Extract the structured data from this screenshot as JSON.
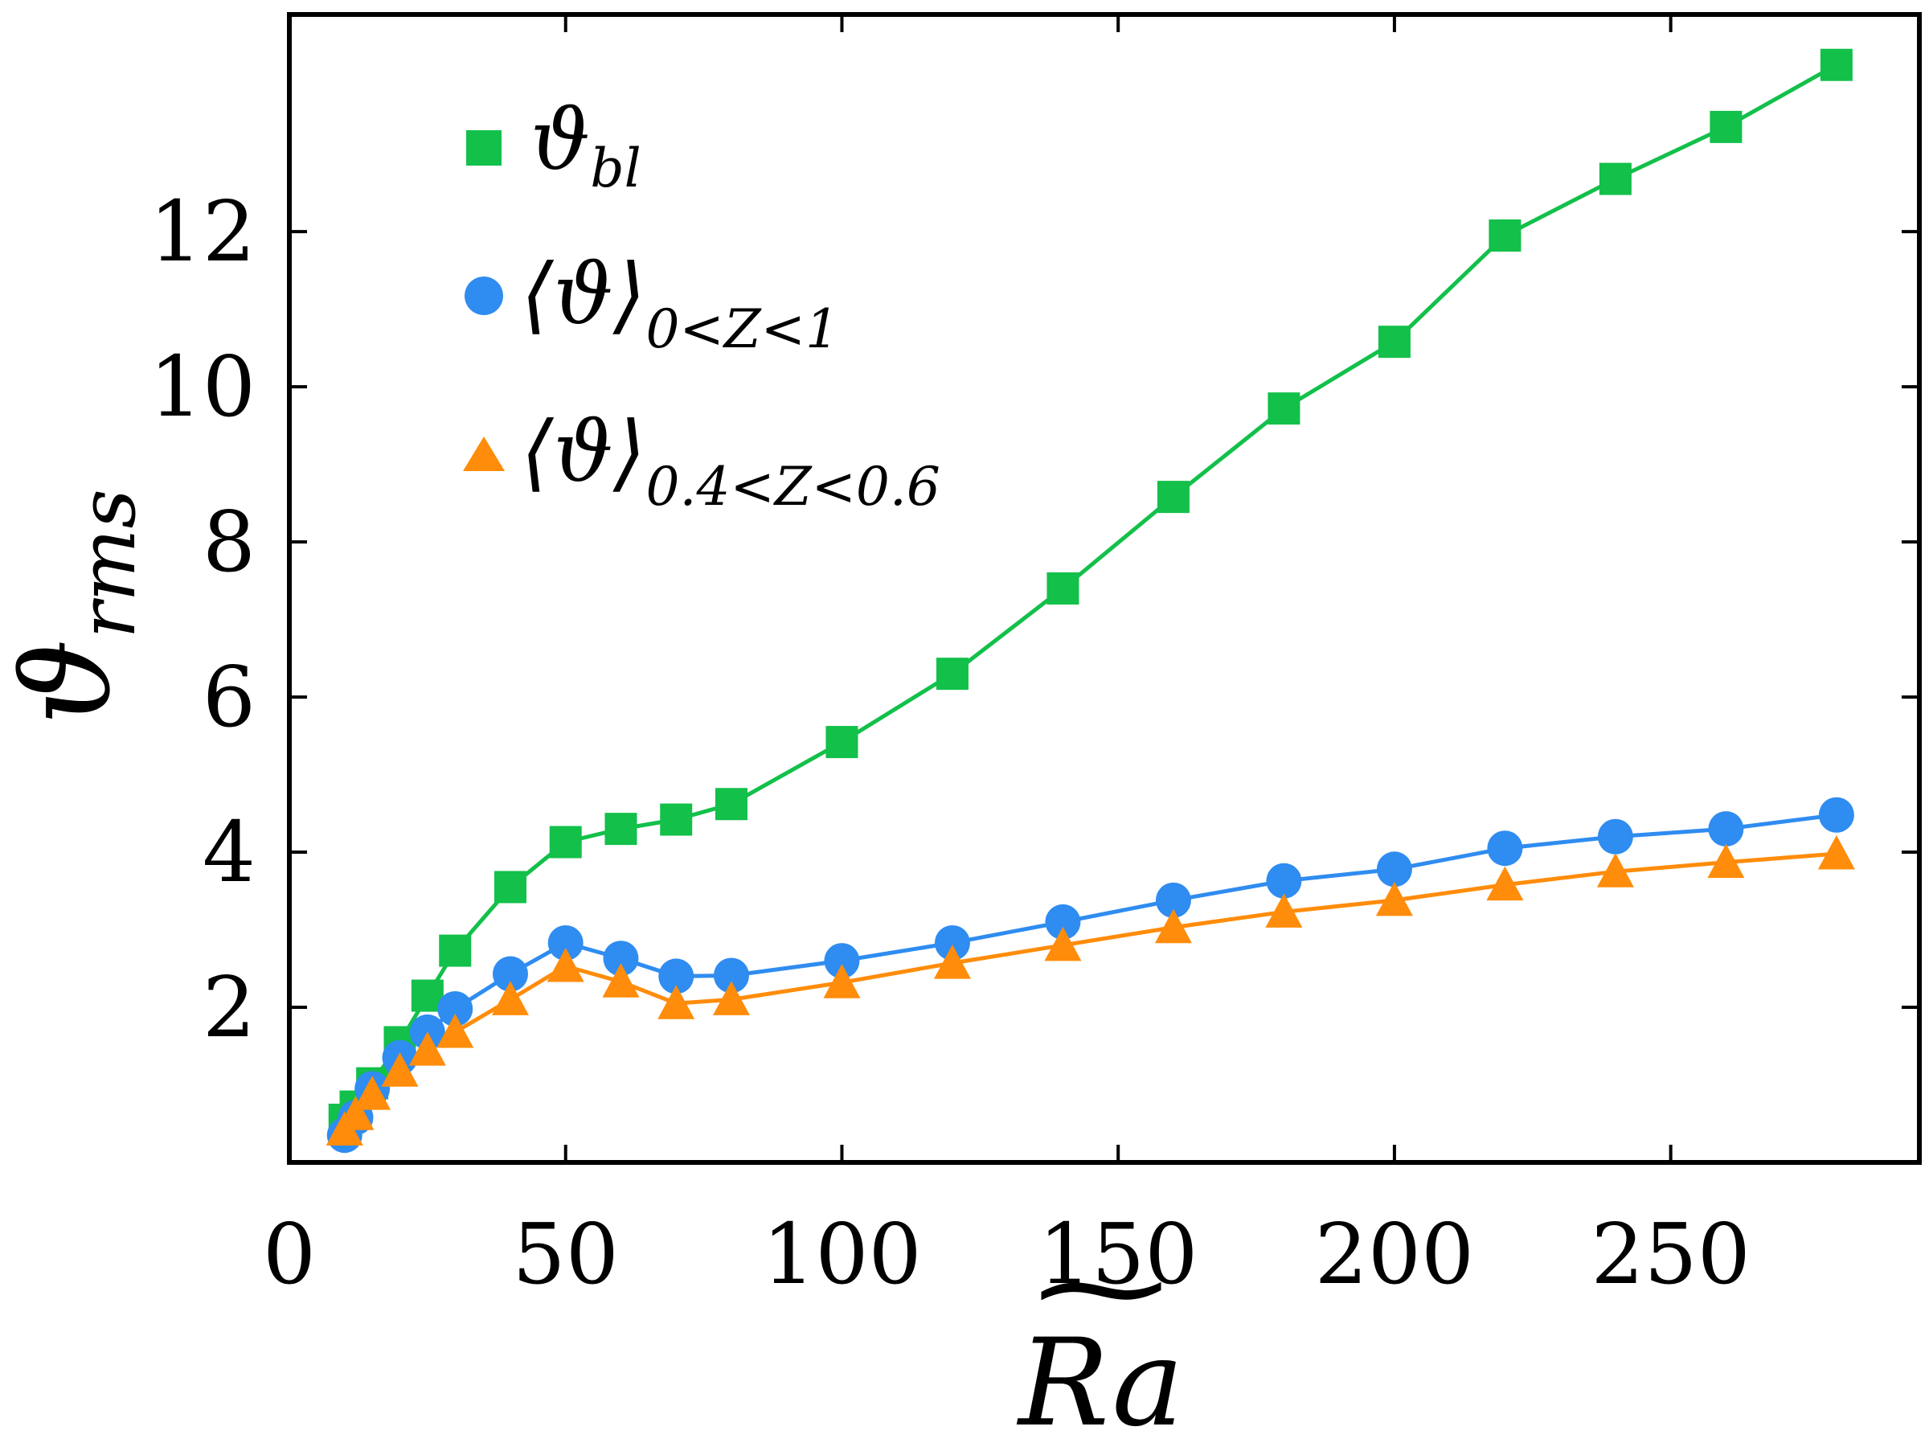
{
  "chart_data": {
    "type": "line",
    "title": "",
    "xlabel": "Ra",
    "xlabel_accent": "~",
    "ylabel": "ϑ",
    "ylabel_sub": "rms",
    "xlim": [
      0,
      295
    ],
    "ylim": [
      0,
      14.8
    ],
    "x_ticks": [
      0,
      50,
      100,
      150,
      200,
      250
    ],
    "x_tick_labels": [
      "0",
      "50",
      "100",
      "150",
      "200",
      "250"
    ],
    "y_ticks": [
      2,
      4,
      6,
      8,
      10,
      12
    ],
    "y_tick_labels": [
      "2",
      "4",
      "6",
      "8",
      "10",
      "12"
    ],
    "grid": false,
    "legend_position": "top-left",
    "series": [
      {
        "name": "ϑ_bl",
        "label_main": "ϑ",
        "label_sub": "bl",
        "marker": "square",
        "color": "#12c04a",
        "x": [
          10,
          12,
          15,
          20,
          25,
          30,
          40,
          50,
          60,
          70,
          80,
          100,
          120,
          140,
          160,
          180,
          200,
          220,
          240,
          260,
          280
        ],
        "values": [
          0.55,
          0.72,
          1.02,
          1.55,
          2.15,
          2.73,
          3.55,
          4.13,
          4.3,
          4.42,
          4.62,
          5.42,
          6.3,
          7.4,
          8.58,
          9.72,
          10.58,
          11.95,
          12.68,
          13.35,
          14.15
        ]
      },
      {
        "name": "⟨ϑ⟩_{0<Z<1}",
        "label_main": "⟨ϑ⟩",
        "label_sub": "0<Z<1",
        "marker": "circle",
        "color": "#2f8cf0",
        "x": [
          10,
          12,
          15,
          20,
          25,
          30,
          40,
          50,
          60,
          70,
          80,
          100,
          120,
          140,
          160,
          180,
          200,
          220,
          240,
          260,
          280
        ],
        "values": [
          0.35,
          0.58,
          0.95,
          1.35,
          1.68,
          1.98,
          2.43,
          2.83,
          2.63,
          2.4,
          2.41,
          2.6,
          2.83,
          3.1,
          3.38,
          3.63,
          3.78,
          4.05,
          4.2,
          4.3,
          4.48
        ]
      },
      {
        "name": "⟨ϑ⟩_{0.4<Z<0.6}",
        "label_main": "⟨ϑ⟩",
        "label_sub": "0.4<Z<0.6",
        "marker": "triangle",
        "color": "#ff8c0a",
        "x": [
          10,
          12,
          15,
          20,
          25,
          30,
          40,
          50,
          60,
          70,
          80,
          100,
          120,
          140,
          160,
          180,
          200,
          220,
          240,
          260,
          280
        ],
        "values": [
          0.42,
          0.62,
          0.88,
          1.18,
          1.45,
          1.68,
          2.1,
          2.53,
          2.33,
          2.05,
          2.1,
          2.32,
          2.57,
          2.8,
          3.03,
          3.23,
          3.38,
          3.58,
          3.75,
          3.87,
          3.98
        ]
      }
    ]
  }
}
